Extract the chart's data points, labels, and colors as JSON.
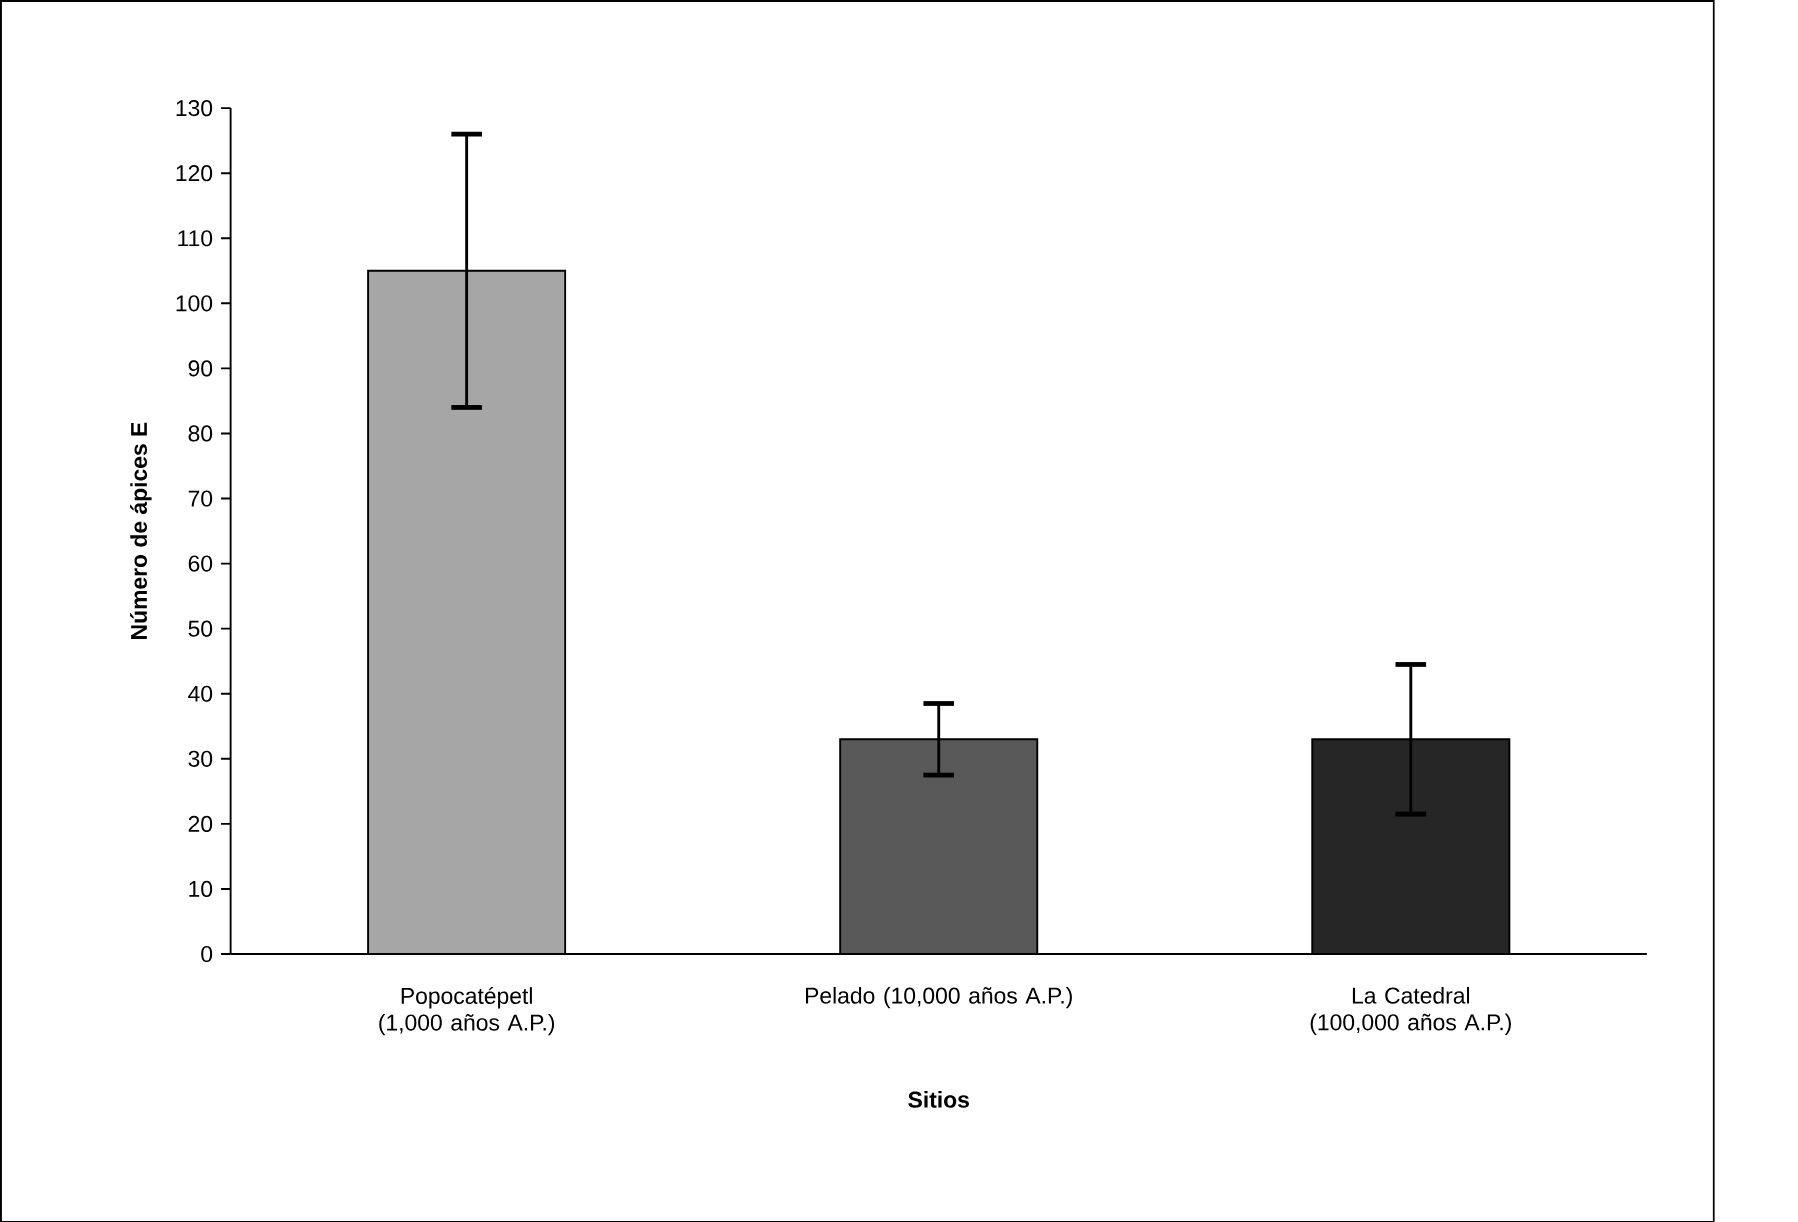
{
  "chart_data": {
    "type": "bar",
    "categories": [
      "Popocatépetl (1,000 años A.P.)",
      "Pelado (10,000 años A.P.)",
      "La Catedral (100,000 años A.P.)"
    ],
    "values": [
      105,
      33,
      33
    ],
    "errors": [
      21,
      5.5,
      11.5
    ],
    "colors": [
      "#a6a6a6",
      "#595959",
      "#262626"
    ],
    "xlabel": "Sitios",
    "ylabel": "Número de ápices E",
    "ylim": [
      0,
      130
    ],
    "yticks": [
      0,
      10,
      20,
      30,
      40,
      50,
      60,
      70,
      80,
      90,
      100,
      110,
      120,
      130
    ],
    "grid": false
  }
}
